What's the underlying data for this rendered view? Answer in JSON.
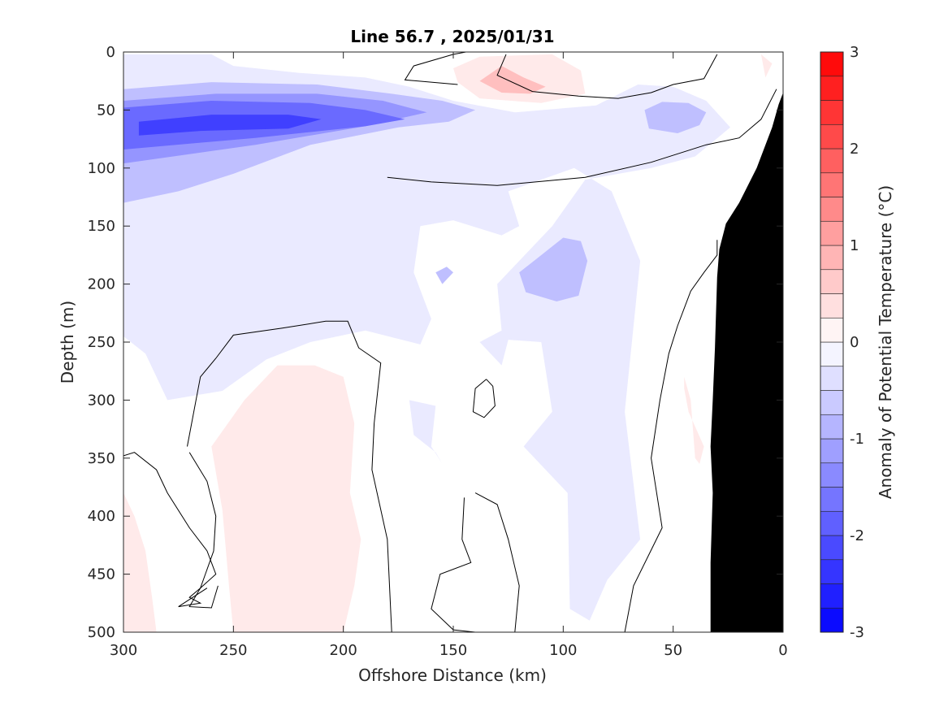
{
  "chart_data": {
    "type": "heatmap",
    "title": "Line 56.7 , 2025/01/31",
    "xlabel": "Offshore Distance (km)",
    "ylabel": "Depth (m)",
    "colorbar_label": "Anomaly of Potential Temperature (°C)",
    "xlim": [
      300,
      0
    ],
    "ylim": [
      0,
      500
    ],
    "x_reversed": true,
    "y_reversed": true,
    "x_ticks": [
      "300",
      "250",
      "200",
      "150",
      "100",
      "50",
      "0"
    ],
    "x_tick_values": [
      300,
      250,
      200,
      150,
      100,
      50,
      0
    ],
    "y_ticks": [
      "0",
      "50",
      "100",
      "150",
      "200",
      "250",
      "300",
      "350",
      "400",
      "450",
      "500"
    ],
    "y_tick_values": [
      0,
      50,
      100,
      150,
      200,
      250,
      300,
      350,
      400,
      450,
      500
    ],
    "colorbar": {
      "range": [
        -3,
        3
      ],
      "step": 0.25,
      "tick_labels": [
        "3",
        "2",
        "1",
        "0",
        "-1",
        "-2",
        "-3"
      ],
      "tick_values": [
        3,
        2,
        1,
        0,
        -1,
        -2,
        -3
      ],
      "negative_color": "#0000ff",
      "positive_color": "#ff0000",
      "zero_color": "#ffffff"
    },
    "regions": [
      {
        "name": "cold-core",
        "anomaly": -2.25,
        "points": [
          [
            293,
            60
          ],
          [
            260,
            54
          ],
          [
            225,
            54
          ],
          [
            210,
            58
          ],
          [
            225,
            66
          ],
          [
            265,
            68
          ],
          [
            293,
            72
          ]
        ]
      },
      {
        "name": "pool-1",
        "anomaly": -1.75,
        "points": [
          [
            300,
            48
          ],
          [
            260,
            42
          ],
          [
            215,
            44
          ],
          [
            190,
            50
          ],
          [
            172,
            58
          ],
          [
            190,
            64
          ],
          [
            240,
            74
          ],
          [
            300,
            84
          ]
        ]
      },
      {
        "name": "pool-2",
        "anomaly": -1.25,
        "points": [
          [
            300,
            42
          ],
          [
            258,
            36
          ],
          [
            212,
            36
          ],
          [
            182,
            42
          ],
          [
            162,
            52
          ],
          [
            190,
            64
          ],
          [
            240,
            80
          ],
          [
            300,
            96
          ]
        ]
      },
      {
        "name": "pool-3",
        "anomaly": -0.75,
        "points": [
          [
            300,
            32
          ],
          [
            260,
            26
          ],
          [
            212,
            28
          ],
          [
            178,
            36
          ],
          [
            155,
            42
          ],
          [
            140,
            50
          ],
          [
            152,
            60
          ],
          [
            175,
            65
          ],
          [
            215,
            80
          ],
          [
            250,
            105
          ],
          [
            275,
            120
          ],
          [
            300,
            130
          ]
        ]
      },
      {
        "name": "pool-4",
        "anomaly": -0.75,
        "points": [
          [
            63,
            50
          ],
          [
            55,
            43
          ],
          [
            43,
            44
          ],
          [
            35,
            52
          ],
          [
            38,
            63
          ],
          [
            48,
            70
          ],
          [
            61,
            66
          ]
        ]
      },
      {
        "name": "pool-5",
        "anomaly": -0.75,
        "points": [
          [
            112,
            178
          ],
          [
            100,
            160
          ],
          [
            92,
            163
          ],
          [
            89,
            180
          ],
          [
            93,
            210
          ],
          [
            103,
            215
          ],
          [
            117,
            207
          ],
          [
            120,
            190
          ]
        ]
      },
      {
        "name": "pool-6",
        "anomaly": -0.75,
        "points": [
          [
            158,
            190
          ],
          [
            153,
            185
          ],
          [
            150,
            190
          ],
          [
            155,
            200
          ]
        ]
      },
      {
        "name": "shelf-1",
        "anomaly": -0.25,
        "points": [
          [
            300,
            2
          ],
          [
            300,
            245
          ],
          [
            290,
            260
          ],
          [
            280,
            300
          ],
          [
            255,
            292
          ],
          [
            235,
            265
          ],
          [
            215,
            250
          ],
          [
            190,
            240
          ],
          [
            165,
            252
          ],
          [
            160,
            230
          ],
          [
            168,
            190
          ],
          [
            165,
            150
          ],
          [
            150,
            145
          ],
          [
            128,
            158
          ],
          [
            120,
            150
          ],
          [
            125,
            120
          ],
          [
            95,
            100
          ],
          [
            78,
            120
          ],
          [
            65,
            180
          ],
          [
            72,
            310
          ],
          [
            65,
            420
          ],
          [
            80,
            455
          ],
          [
            88,
            490
          ],
          [
            97,
            480
          ],
          [
            98,
            380
          ],
          [
            118,
            340
          ],
          [
            105,
            310
          ],
          [
            110,
            250
          ],
          [
            125,
            248
          ],
          [
            128,
            270
          ],
          [
            138,
            250
          ],
          [
            128,
            240
          ],
          [
            130,
            200
          ],
          [
            105,
            150
          ],
          [
            90,
            110
          ],
          [
            60,
            100
          ],
          [
            40,
            90
          ],
          [
            24,
            65
          ],
          [
            35,
            42
          ],
          [
            50,
            30
          ],
          [
            66,
            28
          ],
          [
            85,
            46
          ],
          [
            122,
            52
          ],
          [
            150,
            42
          ],
          [
            170,
            30
          ],
          [
            190,
            22
          ],
          [
            220,
            18
          ],
          [
            250,
            12
          ],
          [
            260,
            2
          ]
        ]
      },
      {
        "name": "shelf-2",
        "anomaly": -0.25,
        "points": [
          [
            170,
            300
          ],
          [
            158,
            305
          ],
          [
            160,
            340
          ],
          [
            155,
            355
          ],
          [
            158,
            345
          ],
          [
            168,
            330
          ]
        ]
      },
      {
        "name": "warm-1",
        "anomaly": 0.75,
        "points": [
          [
            128,
            12
          ],
          [
            118,
            22
          ],
          [
            108,
            30
          ],
          [
            115,
            36
          ],
          [
            128,
            35
          ],
          [
            138,
            25
          ]
        ]
      },
      {
        "name": "warm-2",
        "anomaly": 0.25,
        "points": [
          [
            138,
            4
          ],
          [
            105,
            2
          ],
          [
            92,
            16
          ],
          [
            90,
            36
          ],
          [
            110,
            44
          ],
          [
            138,
            40
          ],
          [
            148,
            26
          ],
          [
            150,
            14
          ]
        ]
      },
      {
        "name": "warm-3",
        "anomaly": 0.25,
        "points": [
          [
            10,
            2
          ],
          [
            5,
            10
          ],
          [
            8,
            22
          ]
        ]
      },
      {
        "name": "warm-4",
        "anomaly": 0.25,
        "points": [
          [
            213,
            270
          ],
          [
            230,
            270
          ],
          [
            245,
            300
          ],
          [
            260,
            340
          ],
          [
            255,
            395
          ],
          [
            252,
            460
          ],
          [
            250,
            500
          ],
          [
            200,
            500
          ],
          [
            195,
            460
          ],
          [
            192,
            420
          ],
          [
            197,
            380
          ],
          [
            195,
            320
          ],
          [
            200,
            280
          ]
        ]
      },
      {
        "name": "warm-5",
        "anomaly": 0.25,
        "points": [
          [
            300,
            380
          ],
          [
            295,
            400
          ],
          [
            290,
            430
          ],
          [
            287,
            470
          ],
          [
            285,
            500
          ],
          [
            300,
            500
          ]
        ]
      },
      {
        "name": "warm-6",
        "anomaly": 0.25,
        "points": [
          [
            45,
            280
          ],
          [
            42,
            300
          ],
          [
            40,
            350
          ],
          [
            38,
            355
          ],
          [
            36,
            340
          ],
          [
            43,
            310
          ],
          [
            45,
            290
          ]
        ]
      }
    ],
    "contours": [
      {
        "level": 0,
        "points": [
          [
            126,
            2
          ],
          [
            130,
            20
          ],
          [
            114,
            34
          ],
          [
            93,
            38
          ],
          [
            75,
            40
          ],
          [
            60,
            35
          ],
          [
            50,
            28
          ],
          [
            36,
            23
          ],
          [
            30,
            2
          ]
        ]
      },
      {
        "level": 0,
        "points": [
          [
            130,
            -5
          ],
          [
            150,
            2
          ],
          [
            168,
            12
          ],
          [
            172,
            24
          ],
          [
            148,
            28
          ]
        ]
      },
      {
        "level": 0,
        "points": [
          [
            300,
            348
          ],
          [
            295,
            345
          ],
          [
            285,
            360
          ],
          [
            280,
            380
          ],
          [
            270,
            410
          ],
          [
            262,
            430
          ],
          [
            258,
            450
          ],
          [
            265,
            462
          ],
          [
            270,
            470
          ],
          [
            265,
            475
          ],
          [
            275,
            478
          ],
          [
            262,
            462
          ]
        ]
      },
      {
        "level": 0,
        "points": [
          [
            271,
            340
          ],
          [
            265,
            280
          ],
          [
            258,
            264
          ],
          [
            250,
            244
          ],
          [
            228,
            238
          ],
          [
            208,
            232
          ],
          [
            198,
            232
          ],
          [
            193,
            255
          ],
          [
            183,
            268
          ],
          [
            186,
            320
          ],
          [
            187,
            360
          ],
          [
            180,
            420
          ],
          [
            178,
            500
          ]
        ]
      },
      {
        "level": 0,
        "points": [
          [
            270,
            345
          ],
          [
            262,
            370
          ],
          [
            258,
            400
          ],
          [
            259,
            430
          ],
          [
            265,
            462
          ],
          [
            270,
            478
          ],
          [
            260,
            479
          ],
          [
            257,
            460
          ]
        ]
      },
      {
        "level": 0,
        "points": [
          [
            140,
            380
          ],
          [
            130,
            390
          ],
          [
            125,
            420
          ],
          [
            120,
            460
          ],
          [
            122,
            500
          ]
        ]
      },
      {
        "level": 0,
        "points": [
          [
            145,
            384
          ],
          [
            146,
            420
          ],
          [
            142,
            440
          ],
          [
            156,
            450
          ],
          [
            160,
            480
          ],
          [
            150,
            498
          ],
          [
            140,
            500
          ]
        ]
      },
      {
        "level": 0,
        "points": [
          [
            135,
            282
          ],
          [
            140,
            290
          ],
          [
            141,
            310
          ],
          [
            136,
            315
          ],
          [
            131,
            305
          ],
          [
            132,
            288
          ],
          [
            135,
            282
          ]
        ]
      },
      {
        "level": 0,
        "points": [
          [
            30,
            162
          ],
          [
            30,
            175
          ],
          [
            36,
            190
          ],
          [
            42,
            206
          ],
          [
            48,
            236
          ],
          [
            52,
            260
          ],
          [
            56,
            300
          ],
          [
            60,
            350
          ],
          [
            55,
            410
          ],
          [
            68,
            460
          ],
          [
            72,
            500
          ]
        ]
      },
      {
        "level": 0,
        "points": [
          [
            3,
            32
          ],
          [
            10,
            58
          ],
          [
            20,
            74
          ],
          [
            35,
            80
          ],
          [
            60,
            95
          ],
          [
            90,
            108
          ],
          [
            130,
            115
          ],
          [
            160,
            112
          ],
          [
            180,
            108
          ]
        ]
      }
    ],
    "land": [
      [
        0,
        35
      ],
      [
        2,
        45
      ],
      [
        5,
        65
      ],
      [
        12,
        100
      ],
      [
        20,
        130
      ],
      [
        26,
        148
      ],
      [
        29,
        170
      ],
      [
        30,
        194
      ],
      [
        31,
        255
      ],
      [
        32,
        300
      ],
      [
        33,
        340
      ],
      [
        32,
        380
      ],
      [
        33,
        440
      ],
      [
        33,
        500
      ],
      [
        0,
        500
      ]
    ]
  }
}
